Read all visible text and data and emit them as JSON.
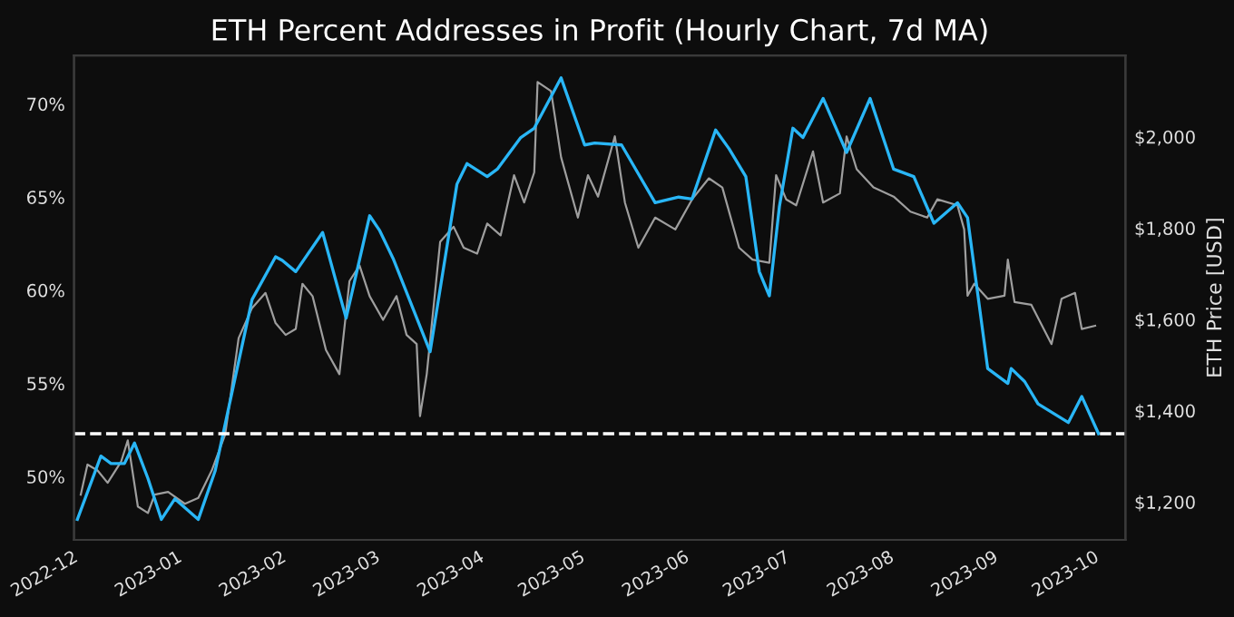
{
  "chart_data": {
    "type": "line",
    "title": "ETH Percent Addresses in Profit (Hourly Chart, 7d MA)",
    "y2label": "ETH Price [USD]",
    "xlim": [
      "2022-11-29",
      "2023-10-08"
    ],
    "ylim": [
      46.6,
      72.6
    ],
    "y2lim": [
      1117,
      2178
    ],
    "xticks": [
      {
        "value": "2022-12-01",
        "label": "2022-12"
      },
      {
        "value": "2023-01-01",
        "label": "2023-01"
      },
      {
        "value": "2023-02-01",
        "label": "2023-02"
      },
      {
        "value": "2023-03-01",
        "label": "2023-03"
      },
      {
        "value": "2023-04-01",
        "label": "2023-04"
      },
      {
        "value": "2023-05-01",
        "label": "2023-05"
      },
      {
        "value": "2023-06-01",
        "label": "2023-06"
      },
      {
        "value": "2023-07-01",
        "label": "2023-07"
      },
      {
        "value": "2023-08-01",
        "label": "2023-08"
      },
      {
        "value": "2023-09-01",
        "label": "2023-09"
      },
      {
        "value": "2023-10-01",
        "label": "2023-10"
      }
    ],
    "yticks": [
      {
        "value": 50,
        "label": "50%"
      },
      {
        "value": 55,
        "label": "55%"
      },
      {
        "value": 60,
        "label": "60%"
      },
      {
        "value": 65,
        "label": "65%"
      },
      {
        "value": 70,
        "label": "70%"
      }
    ],
    "y2ticks": [
      {
        "value": 1200,
        "label": "$1,200"
      },
      {
        "value": 1400,
        "label": "$1,400"
      },
      {
        "value": 1600,
        "label": "$1,600"
      },
      {
        "value": 1800,
        "label": "$1,800"
      },
      {
        "value": 2000,
        "label": "$2,000"
      }
    ],
    "grid": false,
    "legend": false,
    "marker": "none",
    "line_style": "solid",
    "ref_lines": [
      {
        "axis": "y",
        "value": 52.3,
        "color": "#ffffff",
        "line_style": "dashed"
      }
    ],
    "series": [
      {
        "axis": "y2",
        "color": "#9e9e9e",
        "x": [
          "2022-12-01",
          "2022-12-03",
          "2022-12-06",
          "2022-12-09",
          "2022-12-13",
          "2022-12-15",
          "2022-12-18",
          "2022-12-21",
          "2022-12-23",
          "2022-12-27",
          "2023-01-01",
          "2023-01-05",
          "2023-01-09",
          "2023-01-13",
          "2023-01-17",
          "2023-01-21",
          "2023-01-25",
          "2023-01-28",
          "2023-01-31",
          "2023-02-03",
          "2023-02-05",
          "2023-02-08",
          "2023-02-12",
          "2023-02-16",
          "2023-02-19",
          "2023-02-22",
          "2023-02-25",
          "2023-03-01",
          "2023-03-05",
          "2023-03-08",
          "2023-03-11",
          "2023-03-12",
          "2023-03-14",
          "2023-03-18",
          "2023-03-22",
          "2023-03-25",
          "2023-03-29",
          "2023-04-01",
          "2023-04-05",
          "2023-04-09",
          "2023-04-12",
          "2023-04-15",
          "2023-04-16",
          "2023-04-20",
          "2023-04-23",
          "2023-04-28",
          "2023-05-01",
          "2023-05-04",
          "2023-05-09",
          "2023-05-12",
          "2023-05-16",
          "2023-05-21",
          "2023-05-27",
          "2023-06-01",
          "2023-06-06",
          "2023-06-10",
          "2023-06-15",
          "2023-06-19",
          "2023-06-24",
          "2023-06-26",
          "2023-06-29",
          "2023-07-02",
          "2023-07-07",
          "2023-07-10",
          "2023-07-15",
          "2023-07-17",
          "2023-07-20",
          "2023-07-25",
          "2023-07-31",
          "2023-08-05",
          "2023-08-10",
          "2023-08-13",
          "2023-08-19",
          "2023-08-21",
          "2023-08-22",
          "2023-08-24",
          "2023-08-28",
          "2023-09-02",
          "2023-09-03",
          "2023-09-05",
          "2023-09-10",
          "2023-09-16",
          "2023-09-19",
          "2023-09-23",
          "2023-09-25",
          "2023-09-29"
        ],
        "values": [
          1216,
          1282,
          1269,
          1242,
          1288,
          1335,
          1190,
          1176,
          1216,
          1222,
          1196,
          1209,
          1269,
          1348,
          1559,
          1625,
          1658,
          1592,
          1566,
          1579,
          1678,
          1651,
          1533,
          1480,
          1684,
          1718,
          1651,
          1599,
          1651,
          1566,
          1546,
          1388,
          1480,
          1770,
          1803,
          1757,
          1744,
          1810,
          1784,
          1916,
          1856,
          1922,
          2120,
          2100,
          1955,
          1823,
          1916,
          1869,
          2001,
          1856,
          1757,
          1823,
          1797,
          1863,
          1909,
          1889,
          1757,
          1731,
          1724,
          1916,
          1863,
          1850,
          1968,
          1856,
          1876,
          2001,
          1929,
          1889,
          1869,
          1836,
          1823,
          1863,
          1850,
          1797,
          1652,
          1678,
          1645,
          1652,
          1731,
          1638,
          1632,
          1546,
          1645,
          1658,
          1579,
          1586
        ]
      },
      {
        "axis": "y",
        "color": "#29b6f6",
        "x": [
          "2022-11-30",
          "2022-12-07",
          "2022-12-10",
          "2022-12-14",
          "2022-12-17",
          "2022-12-21",
          "2022-12-25",
          "2022-12-29",
          "2023-01-05",
          "2023-01-10",
          "2023-01-15",
          "2023-01-21",
          "2023-01-28",
          "2023-01-30",
          "2023-02-03",
          "2023-02-11",
          "2023-02-18",
          "2023-02-25",
          "2023-02-28",
          "2023-03-04",
          "2023-03-15",
          "2023-03-23",
          "2023-03-26",
          "2023-04-01",
          "2023-04-04",
          "2023-04-11",
          "2023-04-15",
          "2023-04-23",
          "2023-04-30",
          "2023-05-03",
          "2023-05-11",
          "2023-05-21",
          "2023-05-28",
          "2023-06-01",
          "2023-06-08",
          "2023-06-12",
          "2023-06-17",
          "2023-06-21",
          "2023-06-24",
          "2023-06-27",
          "2023-07-01",
          "2023-07-04",
          "2023-07-10",
          "2023-07-17",
          "2023-07-24",
          "2023-07-31",
          "2023-08-06",
          "2023-08-12",
          "2023-08-19",
          "2023-08-22",
          "2023-08-28",
          "2023-09-03",
          "2023-09-04",
          "2023-09-08",
          "2023-09-12",
          "2023-09-21",
          "2023-09-25",
          "2023-09-30"
        ],
        "values": [
          47.7,
          51.1,
          50.7,
          50.7,
          51.8,
          49.9,
          47.7,
          48.8,
          47.7,
          50.3,
          54.5,
          59.5,
          61.8,
          61.6,
          61.0,
          63.1,
          58.5,
          64.0,
          63.2,
          61.7,
          56.7,
          65.7,
          66.8,
          66.1,
          66.5,
          68.2,
          68.7,
          71.4,
          67.8,
          67.9,
          67.8,
          64.7,
          65.0,
          64.9,
          68.6,
          67.6,
          66.1,
          61.0,
          59.7,
          64.5,
          68.7,
          68.2,
          70.3,
          67.4,
          70.3,
          66.5,
          66.1,
          63.6,
          64.7,
          63.9,
          55.8,
          55.0,
          55.8,
          55.1,
          53.9,
          52.9,
          54.3,
          52.3
        ]
      }
    ]
  }
}
